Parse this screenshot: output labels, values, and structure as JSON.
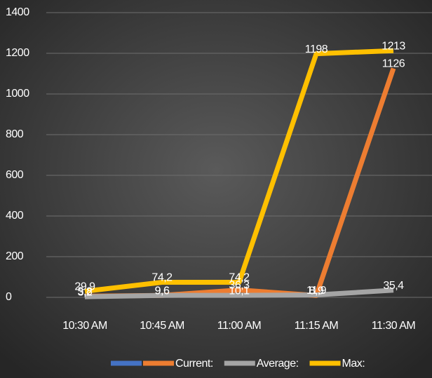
{
  "chart_data": {
    "type": "line",
    "categories": [
      "10:30 AM",
      "10:45 AM",
      "11:00 AM",
      "11:15 AM",
      "11:30 AM"
    ],
    "series": [
      {
        "name": null,
        "color": "#4472c4",
        "values": [
          null,
          null,
          null,
          null,
          null
        ]
      },
      {
        "name": "Current:",
        "color": "#ed7d31",
        "values": [
          5.8,
          9.6,
          36.3,
          8.9,
          1126
        ],
        "value_labels": [
          "5,8",
          "9,6",
          "36,3",
          "8,9",
          "1126"
        ]
      },
      {
        "name": "Average:",
        "color": "#a5a5a5",
        "values": [
          3.2,
          9.6,
          10.1,
          11.9,
          35.4
        ],
        "value_labels": [
          "3,2",
          "9,6",
          "10,1",
          "11,9",
          "35,4"
        ]
      },
      {
        "name": "Max:",
        "color": "#ffc000",
        "values": [
          29.9,
          74.2,
          74.2,
          1198,
          1213
        ],
        "value_labels": [
          "29,9",
          "74,2",
          "74,2",
          "1198",
          "1213"
        ]
      }
    ],
    "ylim": [
      0,
      1400
    ],
    "yticks": [
      0,
      200,
      400,
      600,
      800,
      1000,
      1200,
      1400
    ],
    "grid": true
  }
}
